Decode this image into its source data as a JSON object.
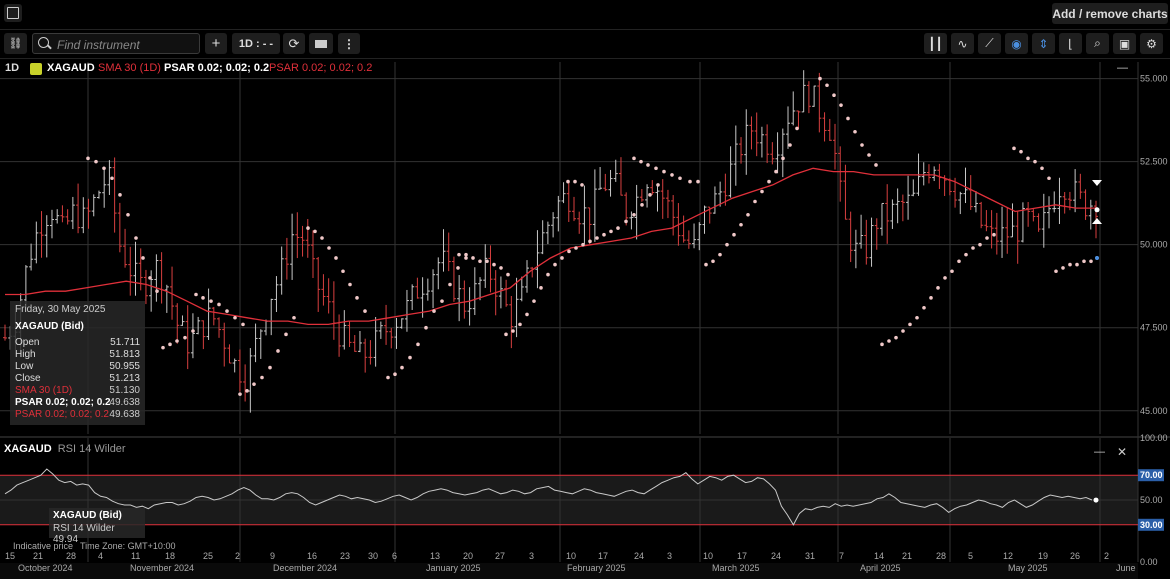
{
  "topbar": {
    "add_remove_label": "Add / remove charts"
  },
  "toolbar": {
    "search_placeholder": "Find instrument",
    "plus_label": "+",
    "timeframe_label": "1D : - -",
    "more_label": "⋮",
    "right_icons": [
      "candles-icon",
      "indicator-icon",
      "draw-line-icon",
      "eye-icon",
      "crosshair-icon",
      "chart-type-icon",
      "zoom-icon",
      "camera-icon",
      "settings-icon"
    ]
  },
  "legend": {
    "interval": "1D",
    "symbol": "XAGAUD",
    "sma": "SMA 30 (1D)",
    "psar1": "PSAR 0.02; 0.02; 0.2",
    "psar2": "PSAR 0.02; 0.02; 0.2",
    "minimize": "—"
  },
  "tooltip": {
    "date": "Friday, 30 May 2025",
    "title": "XAGAUD (Bid)",
    "rows": [
      {
        "k": "Open",
        "v": "51.711"
      },
      {
        "k": "High",
        "v": "51.813"
      },
      {
        "k": "Low",
        "v": "50.955"
      },
      {
        "k": "Close",
        "v": "51.213"
      },
      {
        "k": "SMA 30 (1D)",
        "v": "51.130"
      },
      {
        "k": "PSAR 0.02; 0.02; 0.2",
        "v": "49.638"
      },
      {
        "k": "PSAR 0.02; 0.02; 0.2",
        "v": "49.638"
      }
    ]
  },
  "rsi": {
    "legend_symbol": "XAGAUD",
    "legend_name": "RSI 14 Wilder",
    "tip_title": "XAGAUD (Bid)",
    "tip_value": "RSI 14 Wilder  49.94",
    "minimize": "—",
    "close": "✕"
  },
  "footer": {
    "indicative": "Indicative price",
    "timezone": "Time Zone: GMT+10:00"
  },
  "colors": {
    "up": "#c8c8c8",
    "down": "#d94040",
    "sma": "#e0303a",
    "psar": "#f0c8c8",
    "rsi": "#c8c8c8",
    "band": "#e0303a"
  },
  "chart_data": [
    {
      "type": "candlestick",
      "title": "XAGAUD",
      "ylim": [
        44.3,
        55.5
      ],
      "yticks": [
        45.0,
        47.5,
        50.0,
        52.5,
        55.0
      ],
      "ytick_labels": [
        "45.000",
        "47.500",
        "50.000",
        "52.500",
        "55.000"
      ],
      "x_day_labels": [
        "15",
        "21",
        "28",
        "4",
        "11",
        "18",
        "25",
        "2",
        "9",
        "16",
        "23",
        "30",
        "6",
        "13",
        "20",
        "27",
        "3",
        "10",
        "17",
        "24",
        "3",
        "10",
        "17",
        "24",
        "31",
        "7",
        "14",
        "21",
        "28",
        "5",
        "12",
        "19",
        "26",
        "2"
      ],
      "x_month_labels": [
        "October 2024",
        "November 2024",
        "December 2024",
        "January 2025",
        "February 2025",
        "March 2025",
        "April 2025",
        "May 2025",
        "June"
      ],
      "close_path": [
        47.2,
        47.8,
        49.5,
        50.6,
        51.1,
        50.4,
        51.0,
        50.7,
        51.5,
        52.1,
        50.0,
        49.2,
        48.7,
        49.4,
        48.9,
        47.6,
        47.0,
        47.5,
        47.9,
        47.2,
        46.4,
        46.0,
        47.2,
        48.4,
        49.1,
        50.3,
        50.2,
        48.9,
        48.2,
        47.4,
        46.9,
        46.6,
        46.9,
        47.4,
        47.7,
        48.1,
        48.7,
        49.1,
        49.6,
        48.8,
        48.2,
        48.6,
        49.3,
        48.6,
        47.8,
        48.4,
        49.6,
        50.4,
        51.2,
        51.5,
        51.0,
        50.9,
        51.8,
        51.9,
        51.0,
        51.4,
        52.1,
        51.6,
        51.0,
        50.2,
        49.9,
        51.0,
        51.4,
        52.1,
        52.9,
        53.5,
        53.2,
        52.9,
        53.8,
        54.3,
        54.6,
        54.0,
        53.4,
        50.8,
        49.8,
        49.9,
        50.8,
        50.9,
        51.2,
        51.3,
        52.2,
        52.5,
        52.0,
        51.6,
        51.2,
        50.6,
        50.2,
        50.3,
        50.4,
        50.8,
        50.2,
        51.2,
        51.9,
        51.6,
        51.2,
        51.3
      ],
      "sma_path": [
        48.5,
        48.5,
        48.6,
        48.6,
        48.7,
        48.8,
        48.9,
        48.8,
        48.6,
        48.3,
        48.0,
        47.9,
        47.8,
        47.7,
        47.7,
        47.6,
        47.6,
        47.7,
        47.7,
        47.8,
        47.9,
        48.0,
        48.2,
        48.3,
        48.5,
        48.7,
        49.2,
        49.6,
        49.9,
        50.0,
        50.1,
        50.2,
        50.4,
        50.5,
        50.8,
        51.1,
        51.4,
        51.6,
        51.8,
        52.1,
        52.3,
        52.2,
        52.2,
        52.1,
        52.1,
        52.1,
        52.1,
        51.9,
        51.6,
        51.3,
        51.0,
        51.1,
        51.2,
        51.1,
        51.1
      ],
      "psar_segments": [
        [
          [
            88,
            52.6
          ],
          [
            96,
            52.5
          ],
          [
            104,
            52.3
          ],
          [
            112,
            52.0
          ],
          [
            120,
            51.5
          ],
          [
            128,
            50.9
          ],
          [
            136,
            50.2
          ],
          [
            143,
            49.6
          ],
          [
            150,
            49.0
          ],
          [
            157,
            48.6
          ]
        ],
        [
          [
            163,
            46.9
          ],
          [
            170,
            47.0
          ],
          [
            177,
            47.1
          ],
          [
            185,
            47.2
          ],
          [
            193,
            47.4
          ]
        ],
        [
          [
            196,
            48.5
          ],
          [
            203,
            48.4
          ],
          [
            211,
            48.3
          ],
          [
            219,
            48.2
          ],
          [
            227,
            48.0
          ],
          [
            235,
            47.8
          ],
          [
            243,
            47.6
          ]
        ],
        [
          [
            240,
            45.5
          ],
          [
            247,
            45.6
          ],
          [
            254,
            45.8
          ],
          [
            262,
            46.0
          ],
          [
            270,
            46.3
          ],
          [
            278,
            46.8
          ],
          [
            286,
            47.3
          ],
          [
            294,
            47.8
          ]
        ],
        [
          [
            308,
            50.5
          ],
          [
            315,
            50.4
          ],
          [
            322,
            50.2
          ],
          [
            329,
            49.9
          ],
          [
            336,
            49.6
          ],
          [
            343,
            49.2
          ],
          [
            350,
            48.8
          ],
          [
            357,
            48.4
          ],
          [
            365,
            48.0
          ]
        ],
        [
          [
            388,
            46.0
          ],
          [
            395,
            46.1
          ],
          [
            402,
            46.3
          ],
          [
            410,
            46.6
          ],
          [
            418,
            47.0
          ],
          [
            426,
            47.5
          ],
          [
            434,
            48.0
          ],
          [
            442,
            48.3
          ],
          [
            450,
            48.8
          ],
          [
            458,
            49.3
          ],
          [
            466,
            49.6
          ]
        ],
        [
          [
            459,
            49.7
          ],
          [
            466,
            49.7
          ],
          [
            473,
            49.6
          ],
          [
            480,
            49.5
          ],
          [
            487,
            49.5
          ],
          [
            494,
            49.4
          ],
          [
            501,
            49.3
          ],
          [
            508,
            49.1
          ]
        ],
        [
          [
            506,
            47.3
          ],
          [
            513,
            47.4
          ],
          [
            520,
            47.6
          ],
          [
            527,
            47.9
          ],
          [
            534,
            48.3
          ],
          [
            541,
            48.7
          ],
          [
            548,
            49.1
          ],
          [
            555,
            49.4
          ],
          [
            562,
            49.6
          ],
          [
            569,
            49.8
          ],
          [
            576,
            49.9
          ],
          [
            583,
            50.0
          ],
          [
            590,
            50.1
          ],
          [
            597,
            50.2
          ],
          [
            604,
            50.3
          ],
          [
            611,
            50.4
          ],
          [
            618,
            50.5
          ],
          [
            626,
            50.7
          ],
          [
            634,
            50.9
          ],
          [
            642,
            51.2
          ],
          [
            650,
            51.5
          ],
          [
            658,
            51.8
          ]
        ],
        [
          [
            568,
            51.9
          ],
          [
            575,
            51.9
          ],
          [
            582,
            51.8
          ]
        ],
        [
          [
            634,
            52.6
          ],
          [
            641,
            52.5
          ],
          [
            648,
            52.4
          ],
          [
            656,
            52.3
          ],
          [
            664,
            52.2
          ],
          [
            672,
            52.1
          ],
          [
            680,
            52.0
          ],
          [
            690,
            51.9
          ],
          [
            698,
            51.9
          ]
        ],
        [
          [
            706,
            49.4
          ],
          [
            713,
            49.5
          ],
          [
            720,
            49.7
          ],
          [
            727,
            50.0
          ],
          [
            734,
            50.3
          ],
          [
            741,
            50.6
          ],
          [
            748,
            50.9
          ],
          [
            755,
            51.3
          ],
          [
            762,
            51.6
          ],
          [
            769,
            51.9
          ],
          [
            776,
            52.2
          ],
          [
            783,
            52.6
          ],
          [
            790,
            53.0
          ],
          [
            797,
            53.5
          ]
        ],
        [
          [
            820,
            55.0
          ],
          [
            827,
            54.8
          ],
          [
            834,
            54.5
          ],
          [
            841,
            54.2
          ],
          [
            848,
            53.8
          ],
          [
            855,
            53.4
          ],
          [
            862,
            53.0
          ],
          [
            869,
            52.7
          ],
          [
            876,
            52.4
          ]
        ],
        [
          [
            882,
            47.0
          ],
          [
            889,
            47.1
          ],
          [
            896,
            47.2
          ],
          [
            903,
            47.4
          ],
          [
            910,
            47.6
          ],
          [
            917,
            47.8
          ],
          [
            924,
            48.1
          ],
          [
            931,
            48.4
          ],
          [
            938,
            48.7
          ],
          [
            945,
            49.0
          ],
          [
            952,
            49.2
          ],
          [
            959,
            49.5
          ],
          [
            966,
            49.7
          ],
          [
            973,
            49.9
          ],
          [
            980,
            50.0
          ],
          [
            987,
            50.2
          ],
          [
            994,
            50.3
          ]
        ],
        [
          [
            1014,
            52.9
          ],
          [
            1021,
            52.8
          ],
          [
            1028,
            52.6
          ],
          [
            1035,
            52.5
          ],
          [
            1042,
            52.3
          ],
          [
            1049,
            52.0
          ]
        ],
        [
          [
            1056,
            49.2
          ],
          [
            1063,
            49.3
          ],
          [
            1070,
            49.4
          ],
          [
            1077,
            49.4
          ],
          [
            1084,
            49.5
          ],
          [
            1091,
            49.5
          ],
          [
            1097,
            49.6
          ]
        ]
      ]
    },
    {
      "type": "line",
      "title": "RSI 14 Wilder",
      "ylim": [
        0,
        100
      ],
      "yticks": [
        0,
        30,
        50,
        70,
        100
      ],
      "ytick_labels": [
        "0.00",
        "30.00",
        "50.00",
        "70.00",
        "100.00"
      ],
      "bands": [
        30,
        70
      ],
      "highlight_labels": [
        "70.00",
        "30.00"
      ],
      "values": [
        55,
        58,
        62,
        64,
        66,
        68,
        70,
        75,
        71,
        66,
        64,
        65,
        62,
        63,
        62,
        56,
        53,
        52,
        49,
        47,
        46,
        46,
        44,
        45,
        43,
        46,
        47,
        48,
        48,
        46,
        47,
        49,
        52,
        53,
        52,
        50,
        51,
        53,
        55,
        58,
        60,
        58,
        54,
        51,
        51,
        50,
        52,
        55,
        56,
        55,
        52,
        48,
        46,
        48,
        50,
        52,
        54,
        53,
        51,
        52,
        51,
        50,
        48,
        49,
        51,
        53,
        54,
        52,
        50,
        52,
        55,
        57,
        58,
        59,
        58,
        56,
        55,
        54,
        55,
        56,
        58,
        59,
        57,
        55,
        56,
        58,
        57,
        55,
        56,
        59,
        60,
        61,
        58,
        57,
        56,
        55,
        57,
        59,
        58,
        56,
        55,
        54,
        53,
        55,
        57,
        58,
        56,
        55,
        58,
        61,
        64,
        66,
        68,
        69,
        72,
        67,
        63,
        66,
        69,
        68,
        66,
        69,
        70,
        67,
        64,
        65,
        68,
        67,
        63,
        58,
        45,
        38,
        30,
        39,
        43,
        42,
        44,
        45,
        44,
        47,
        45,
        46,
        45,
        46,
        47,
        48,
        51,
        52,
        55,
        52,
        48,
        47,
        46,
        45,
        44,
        46,
        47,
        44,
        40,
        43,
        45,
        46,
        48,
        50,
        49,
        47,
        46,
        44,
        48,
        50,
        47,
        44,
        46,
        49,
        52,
        54,
        53,
        52,
        53,
        52,
        51,
        52,
        50
      ],
      "last_value": 49.94
    }
  ]
}
